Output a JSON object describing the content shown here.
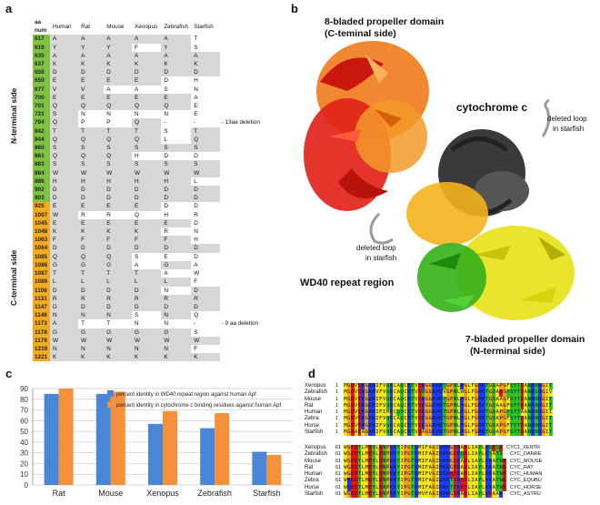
{
  "panel_a": {
    "letter": "a",
    "headers": [
      "aa num",
      "Human",
      "Rat",
      "Mouse",
      "Xenopus",
      "Zebrafish",
      "Starfish"
    ],
    "n_side_label": "N-terminal side",
    "c_side_label": "C-terminal side",
    "rows": [
      {
        "num": "617",
        "side": "N",
        "res": [
          "A",
          "A",
          "A",
          "A",
          "A",
          "T"
        ],
        "shade": [
          1,
          1,
          1,
          1,
          1,
          0
        ],
        "note": ""
      },
      {
        "num": "619",
        "side": "N",
        "res": [
          "Y",
          "Y",
          "Y",
          "F",
          "Y",
          "S"
        ],
        "shade": [
          1,
          1,
          1,
          0,
          1,
          0
        ],
        "note": ""
      },
      {
        "num": "635",
        "side": "N",
        "res": [
          "A",
          "A",
          "A",
          "A",
          "A",
          "A"
        ],
        "shade": [
          1,
          1,
          1,
          1,
          1,
          1
        ],
        "note": ""
      },
      {
        "num": "637",
        "side": "N",
        "res": [
          "K",
          "K",
          "K",
          "K",
          "K",
          "K"
        ],
        "shade": [
          1,
          1,
          1,
          1,
          1,
          1
        ],
        "note": ""
      },
      {
        "num": "658",
        "side": "N",
        "res": [
          "D",
          "D",
          "D",
          "D",
          "D",
          "D"
        ],
        "shade": [
          1,
          1,
          1,
          1,
          1,
          1
        ],
        "note": ""
      },
      {
        "num": "659",
        "side": "N",
        "res": [
          "E",
          "E",
          "E",
          "E",
          "D",
          "H"
        ],
        "shade": [
          1,
          1,
          1,
          1,
          0,
          0
        ],
        "note": ""
      },
      {
        "num": "677",
        "side": "N",
        "res": [
          "V",
          "V",
          "A",
          "A",
          "S",
          "N"
        ],
        "shade": [
          1,
          1,
          0,
          0,
          0,
          0
        ],
        "note": ""
      },
      {
        "num": "700",
        "side": "N",
        "res": [
          "E",
          "E",
          "E",
          "E",
          "E",
          "A"
        ],
        "shade": [
          1,
          1,
          1,
          1,
          1,
          0
        ],
        "note": ""
      },
      {
        "num": "701",
        "side": "N",
        "res": [
          "Q",
          "Q",
          "Q",
          "Q",
          "Q",
          "E"
        ],
        "shade": [
          1,
          1,
          1,
          1,
          1,
          0
        ],
        "note": ""
      },
      {
        "num": "721",
        "side": "N",
        "res": [
          "S",
          "N",
          "N",
          "N",
          "N",
          "E"
        ],
        "shade": [
          1,
          0,
          0,
          0,
          0,
          0
        ],
        "note": ""
      },
      {
        "num": "794",
        "side": "N",
        "res": [
          "Q",
          "P",
          "P",
          "Q",
          "-",
          "-"
        ],
        "shade": [
          1,
          0,
          0,
          1,
          0,
          0
        ],
        "note": "13aa deletion"
      },
      {
        "num": "842",
        "side": "N",
        "res": [
          "T",
          "T",
          "T",
          "T",
          "S",
          "T"
        ],
        "shade": [
          1,
          1,
          1,
          1,
          0,
          1
        ],
        "note": ""
      },
      {
        "num": "844",
        "side": "N",
        "res": [
          "Q",
          "Q",
          "Q",
          "Q",
          "L",
          "Q"
        ],
        "shade": [
          1,
          1,
          1,
          1,
          0,
          1
        ],
        "note": ""
      },
      {
        "num": "860",
        "side": "N",
        "res": [
          "S",
          "S",
          "S",
          "S",
          "S",
          "S"
        ],
        "shade": [
          1,
          1,
          1,
          1,
          1,
          1
        ],
        "note": ""
      },
      {
        "num": "861",
        "side": "N",
        "res": [
          "Q",
          "Q",
          "Q",
          "H",
          "D",
          "D"
        ],
        "shade": [
          1,
          1,
          1,
          0,
          0,
          0
        ],
        "note": ""
      },
      {
        "num": "883",
        "side": "N",
        "res": [
          "S",
          "S",
          "S",
          "S",
          "S",
          "S"
        ],
        "shade": [
          1,
          1,
          1,
          1,
          1,
          1
        ],
        "note": ""
      },
      {
        "num": "884",
        "side": "N",
        "res": [
          "W",
          "W",
          "W",
          "W",
          "W",
          "W"
        ],
        "shade": [
          1,
          1,
          1,
          1,
          1,
          1
        ],
        "note": ""
      },
      {
        "num": "886",
        "side": "N",
        "res": [
          "H",
          "H",
          "H",
          "H",
          "H",
          "L"
        ],
        "shade": [
          1,
          1,
          1,
          1,
          1,
          0
        ],
        "note": ""
      },
      {
        "num": "902",
        "side": "N",
        "res": [
          "D",
          "D",
          "D",
          "D",
          "D",
          "D"
        ],
        "shade": [
          1,
          1,
          1,
          1,
          1,
          1
        ],
        "note": ""
      },
      {
        "num": "903",
        "side": "N",
        "res": [
          "D",
          "D",
          "D",
          "D",
          "D",
          "D"
        ],
        "shade": [
          1,
          1,
          1,
          1,
          1,
          1
        ],
        "note": ""
      },
      {
        "num": "925",
        "side": "C",
        "res": [
          "E",
          "E",
          "E",
          "E",
          "D",
          "D"
        ],
        "shade": [
          1,
          1,
          1,
          1,
          0,
          0
        ],
        "note": ""
      },
      {
        "num": "1007",
        "side": "C",
        "res": [
          "W",
          "R",
          "R",
          "Q",
          "H",
          "R"
        ],
        "shade": [
          1,
          0,
          0,
          0,
          0,
          0
        ],
        "note": ""
      },
      {
        "num": "1045",
        "side": "C",
        "res": [
          "E",
          "E",
          "E",
          "E",
          "E",
          "D"
        ],
        "shade": [
          1,
          1,
          1,
          1,
          1,
          0
        ],
        "note": ""
      },
      {
        "num": "1048",
        "side": "C",
        "res": [
          "K",
          "K",
          "K",
          "K",
          "R",
          "N"
        ],
        "shade": [
          1,
          1,
          1,
          1,
          0,
          0
        ],
        "note": ""
      },
      {
        "num": "1063",
        "side": "C",
        "res": [
          "F",
          "F",
          "F",
          "F",
          "F",
          "H"
        ],
        "shade": [
          1,
          1,
          1,
          1,
          1,
          0
        ],
        "note": ""
      },
      {
        "num": "1064",
        "side": "C",
        "res": [
          "D",
          "D",
          "D",
          "D",
          "D",
          "D"
        ],
        "shade": [
          1,
          1,
          1,
          1,
          1,
          1
        ],
        "note": ""
      },
      {
        "num": "1085",
        "side": "C",
        "res": [
          "Q",
          "Q",
          "Q",
          "S",
          "E",
          "D"
        ],
        "shade": [
          1,
          1,
          1,
          0,
          0,
          0
        ],
        "note": ""
      },
      {
        "num": "1086",
        "side": "C",
        "res": [
          "G",
          "G",
          "G",
          "A",
          "G",
          "A"
        ],
        "shade": [
          1,
          1,
          1,
          0,
          1,
          0
        ],
        "note": ""
      },
      {
        "num": "1087",
        "side": "C",
        "res": [
          "T",
          "T",
          "T",
          "T",
          "A",
          "W"
        ],
        "shade": [
          1,
          1,
          1,
          1,
          0,
          0
        ],
        "note": ""
      },
      {
        "num": "1089",
        "side": "C",
        "res": [
          "L",
          "L",
          "L",
          "L",
          "L",
          "F"
        ],
        "shade": [
          1,
          1,
          1,
          1,
          1,
          0
        ],
        "note": ""
      },
      {
        "num": "1106",
        "side": "C",
        "res": [
          "D",
          "D",
          "D",
          "D",
          "N",
          "D"
        ],
        "shade": [
          1,
          1,
          1,
          1,
          0,
          1
        ],
        "note": ""
      },
      {
        "num": "1131",
        "side": "C",
        "res": [
          "R",
          "R",
          "R",
          "R",
          "R",
          "R"
        ],
        "shade": [
          1,
          1,
          1,
          1,
          1,
          1
        ],
        "note": ""
      },
      {
        "num": "1147",
        "side": "C",
        "res": [
          "D",
          "D",
          "D",
          "D",
          "D",
          "D"
        ],
        "shade": [
          1,
          1,
          1,
          1,
          1,
          1
        ],
        "note": ""
      },
      {
        "num": "1148",
        "side": "C",
        "res": [
          "N",
          "N",
          "N",
          "S",
          "N",
          "Q"
        ],
        "shade": [
          1,
          1,
          1,
          0,
          1,
          0
        ],
        "note": ""
      },
      {
        "num": "1173",
        "side": "C",
        "res": [
          "A",
          "T",
          "T",
          "N",
          "N",
          "-"
        ],
        "shade": [
          1,
          0,
          0,
          0,
          0,
          0
        ],
        "note": "9 aa deletion"
      },
      {
        "num": "1178",
        "side": "C",
        "res": [
          "G",
          "G",
          "G",
          "G",
          "G",
          "S"
        ],
        "shade": [
          1,
          1,
          1,
          1,
          1,
          0
        ],
        "note": ""
      },
      {
        "num": "1179",
        "side": "C",
        "res": [
          "W",
          "W",
          "W",
          "W",
          "W",
          "W"
        ],
        "shade": [
          1,
          1,
          1,
          1,
          1,
          1
        ],
        "note": ""
      },
      {
        "num": "1219",
        "side": "C",
        "res": [
          "N",
          "N",
          "N",
          "N",
          "N",
          "F"
        ],
        "shade": [
          1,
          1,
          1,
          1,
          1,
          0
        ],
        "note": ""
      },
      {
        "num": "1221",
        "side": "C",
        "res": [
          "K",
          "K",
          "K",
          "K",
          "K",
          "K"
        ],
        "shade": [
          1,
          1,
          1,
          1,
          1,
          1
        ],
        "note": ""
      }
    ]
  },
  "panel_b": {
    "letter": "b",
    "label_top_1": "8-bladed propeller domain",
    "label_top_2": "(C-teminal side)",
    "label_cyt": "cytochrome c",
    "label_loop_right_1": "deleted loop",
    "label_loop_right_2": "in starfish",
    "label_loop_left_1": "deleted loop",
    "label_loop_left_2": "in starfish",
    "label_wd40": "WD40 repeat region",
    "label_bottom_1": "7-bladed propeller domain",
    "label_bottom_2": "(N-terminal side)",
    "colors": {
      "red": "#e2231a",
      "orange": "#f07a1a",
      "yellow_orange": "#f5b21e",
      "yellow": "#e8e31a",
      "green": "#38b21c",
      "dark": "#3a3a3a",
      "grey": "#9a9a9a"
    }
  },
  "panel_c": {
    "letter": "c",
    "chart_data": {
      "type": "bar",
      "categories": [
        "Rat",
        "Mouse",
        "Xenopus",
        "Zebrafish",
        "Starfish"
      ],
      "series": [
        {
          "name": "percent identity in WD40 repeat region against human Apf",
          "values": [
            85,
            85,
            57,
            53,
            31
          ],
          "color": "#4a86d8"
        },
        {
          "name": "percent identity in cytochrome c binding residues against human Apf",
          "values": [
            90,
            87,
            69,
            67,
            28
          ],
          "color": "#f5913a"
        }
      ],
      "yticks": [
        0,
        10,
        20,
        30,
        40,
        50,
        60,
        70,
        80,
        90
      ],
      "ylim": [
        0,
        90
      ],
      "grid": true,
      "legend": "top-center"
    }
  },
  "panel_d": {
    "letter": "d",
    "block1": {
      "names": [
        "Xenopus",
        "Zebrafish",
        "Mouse",
        "Rat",
        "Human",
        "Zebra",
        "Horse",
        "Starfish"
      ],
      "start": "1",
      "seqs": [
        "MGDVEKGKKIFVQKCAQCHTVEKGGKHKTGPNLHGLFGRKTGQAPGFSYTDANKNKGIT",
        "MGDVEKGKKVFVQKCAQCHTVENGGKHKVGPNLWGLFGRKTGQAEGYSYTDANKSKGIV",
        "MGDVEKGKKIFVQKCAQCHTVEKGGKHKTGPNLHGLFGRKTGQAAGFSYTDANKNKGIT",
        "MGDVEKGKKIFVQKCAQCHTVEKGGKHKTGPNLHGLFGRKTGQAAGFSYTDANKNKGIT",
        "MGDVEKGKKIFIMKCSQCHTVEKGGKHKTGPNLHGLFGRKTGQAPGYSYTAANKNKGII",
        "MGDVEKGKKIFVQKCAQCHTVEKGGKHKTGPNLHGLFGRKTGQAPGFSYTDANKNKGIT",
        "MGDVEKGKKIFVQKCAQCHTVEKGGKHKTGPNLHGLFGRKTGQAPGFTYTDANKNKGIT",
        "MGDAEAGKKIFVQKCAQCHTVEAGGKHKTGPNLHGLFGRKTGQAPGFSYTDANKNKGIT"
      ]
    },
    "block2": {
      "names": [
        "Xenopus",
        "Zebrafish",
        "Mouse",
        "Rat",
        "Human",
        "Zebra",
        "Horse",
        "Starfish"
      ],
      "start": "61",
      "seqs": [
        "WGEDTLMEYLENPKKYIPGTKMIFAGIKKKGERADLIAYLKSESE",
        "WGEDTLMEYLENPKKYIPGTKMIFAGIKKKGERQDLIAYLKSATS-",
        "WGEDTLMEYLENPKKYIPGTKMIFAGIKKKGERADLIAYLKKATNE",
        "WGEDTLMEYLENPKKYIPGTKMIFAGIKKKGERADLIAYLKKATNE",
        "WGEDTLMEYLENPKKYIPGTKMIFVGIKKKEERADLIAYLKKATNE",
        "WKEETLMEYLENPKKYIPGTKMIFAGIKKKTEREDLIAYLKKATNE",
        "WKEETLMEYLENPKKYIPGTKMIFAGIKKKTEREDLIAYLKKATNE",
        "WGEDTLMEYLENPKKYIPGTKMVFAGIKKKGERADLIAYLKEAAK-"
      ],
      "tags": [
        "CYC1_XENTR",
        "CYC_DANRE",
        "CYC_MOUSE",
        "CYC_RAT",
        "CYC_HUMAN",
        "CYC_EQUBU",
        "CYC_HORSE",
        "CYC_ASTRU"
      ]
    }
  }
}
